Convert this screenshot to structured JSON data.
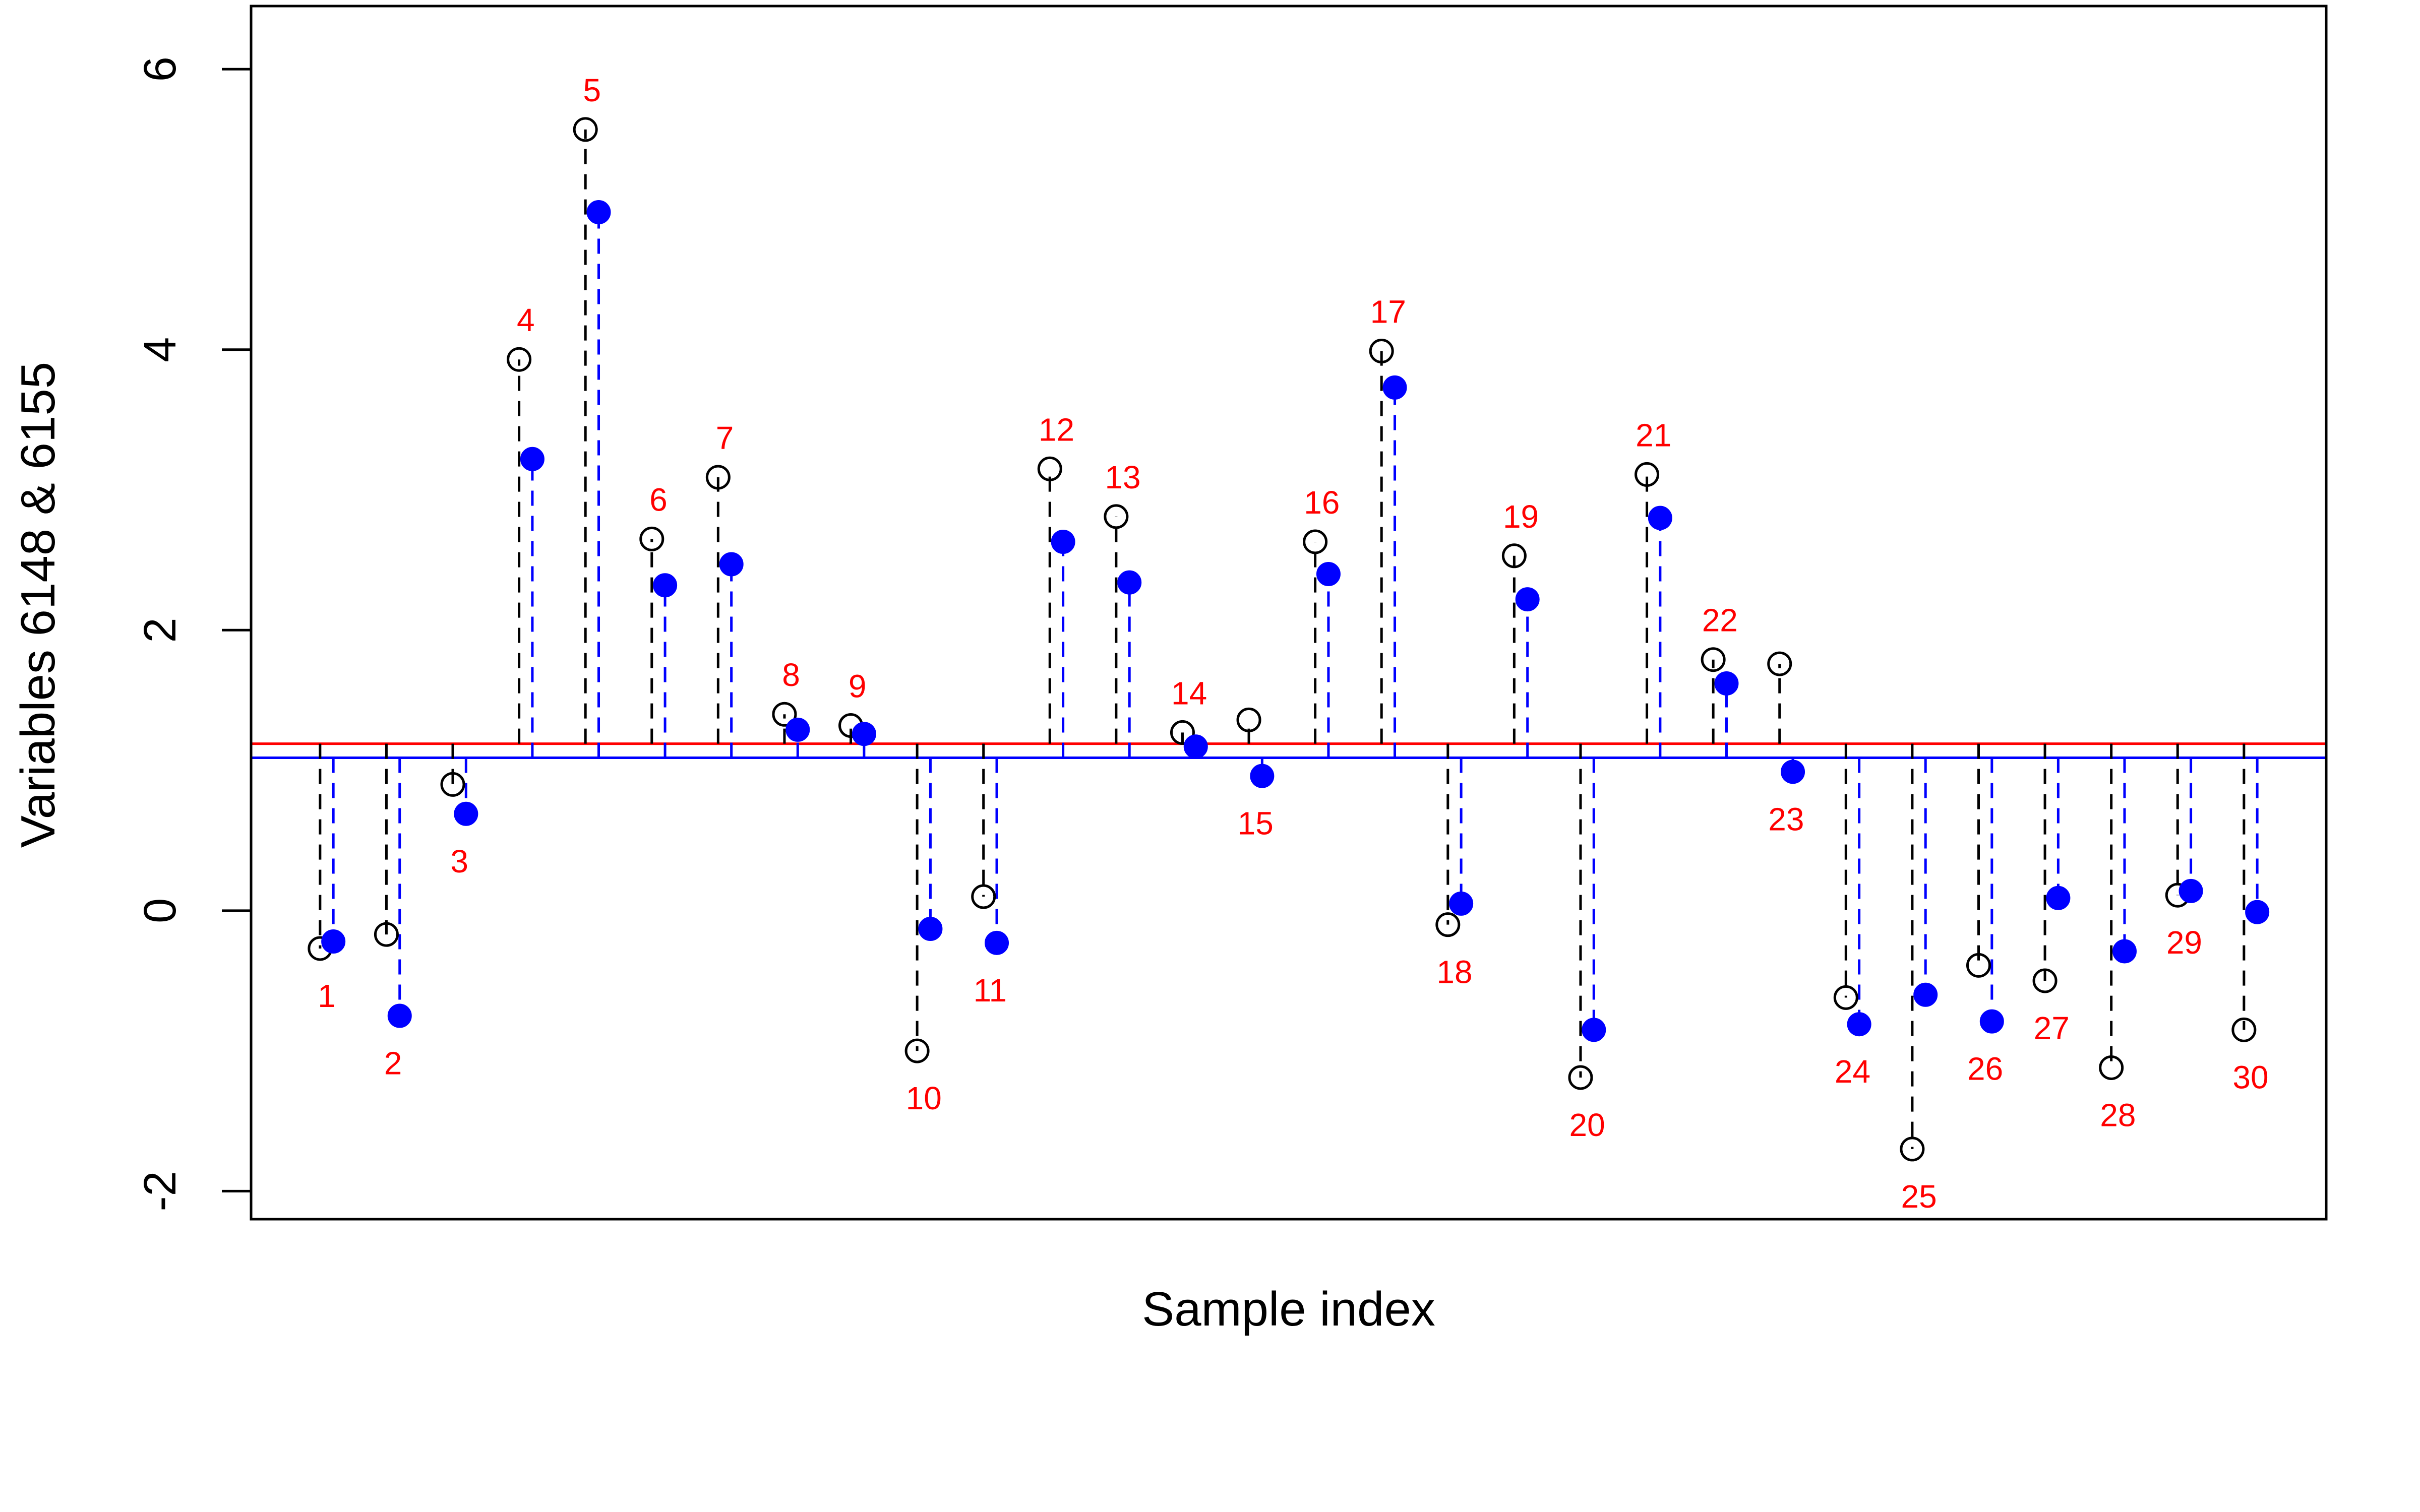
{
  "chart_data": {
    "type": "scatter",
    "xlabel": "Sample index",
    "ylabel": "Variables 6148 & 6155",
    "ylim": [
      -2.2,
      6.45
    ],
    "xlim": [
      -0.14,
      31.14
    ],
    "y_ticks": [
      -2,
      0,
      2,
      4,
      6
    ],
    "y_tick_labels": [
      "-2",
      "0",
      "2",
      "4",
      "6"
    ],
    "reference_lines": [
      {
        "y": 1.19,
        "color": "#ff0000"
      },
      {
        "y": 1.09,
        "color": "#0000ff"
      }
    ],
    "index_labels": [
      "1",
      "2",
      "3",
      "4",
      "5",
      "6",
      "7",
      "8",
      "9",
      "10",
      "11",
      "12",
      "13",
      "14",
      "15",
      "16",
      "17",
      "18",
      "19",
      "20",
      "21",
      "22",
      "23",
      "24",
      "25",
      "26",
      "27",
      "28",
      "29",
      "30"
    ],
    "series": [
      {
        "marker": "open-circle",
        "color": "#000000",
        "values": [
          -0.27,
          -0.17,
          0.9,
          3.93,
          5.57,
          2.65,
          3.09,
          1.4,
          1.32,
          -1.0,
          0.1,
          3.15,
          2.81,
          1.27,
          1.36,
          2.63,
          3.99,
          -0.1,
          2.53,
          -1.19,
          3.11,
          1.79,
          1.76,
          -0.62,
          -1.7,
          -0.39,
          -0.5,
          -1.12,
          0.11,
          -0.85
        ]
      },
      {
        "marker": "filled-circle",
        "color": "#0000ff",
        "values": [
          -0.22,
          -0.75,
          0.69,
          3.22,
          4.98,
          2.32,
          2.47,
          1.29,
          1.26,
          -0.13,
          -0.23,
          2.63,
          2.34,
          1.17,
          0.96,
          2.4,
          3.73,
          0.05,
          2.22,
          -0.85,
          2.8,
          1.62,
          0.99,
          -0.81,
          -0.6,
          -0.79,
          0.09,
          -0.29,
          0.14,
          -0.01
        ]
      }
    ]
  }
}
